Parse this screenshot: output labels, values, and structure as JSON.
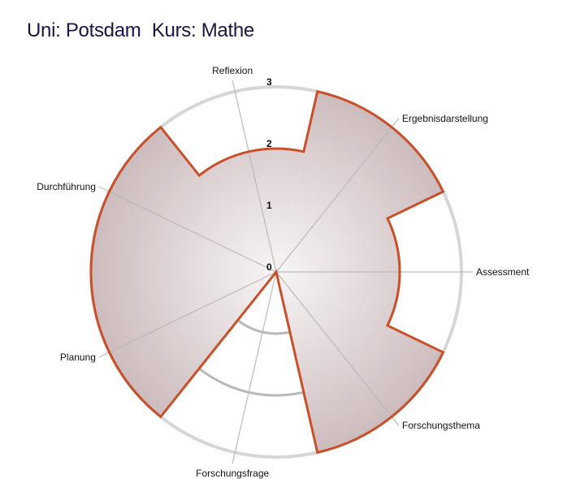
{
  "title": {
    "uni": "Uni: Potsdam",
    "kurs": "Kurs: Mathe"
  },
  "chart_data": {
    "type": "radial-bar",
    "title": "Uni: Potsdam  Kurs: Mathe",
    "rlim": [
      0,
      3
    ],
    "r_ticks": [
      "0",
      "1",
      "2",
      "3"
    ],
    "categories": [
      "Durchführung",
      "Reflexion",
      "Ergebnisdarstellung",
      "Assessment",
      "Forschungsthema",
      "Forschungsfrage",
      "Planung"
    ],
    "values": [
      3,
      2,
      3,
      2,
      3,
      0,
      3
    ],
    "grid": true,
    "colors": {
      "fill_outer": "#cdbcbe",
      "fill_inner": "#f7f5f5",
      "outline": "#c8502a",
      "grid": "#b9b9b9",
      "outer_ring": "#d6d6d6"
    }
  }
}
